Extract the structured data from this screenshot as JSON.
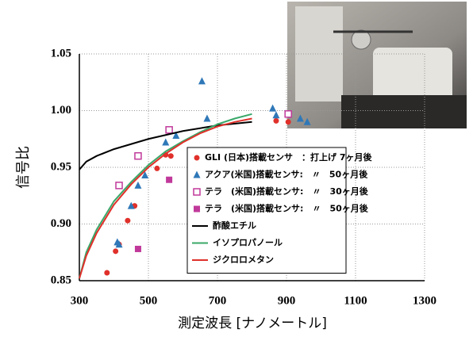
{
  "chart_data": {
    "type": "scatter",
    "xlabel": "測定波長 [ナノメートル]",
    "ylabel": "信号比",
    "xlim": [
      300,
      1300
    ],
    "xticks": [
      300,
      500,
      700,
      900,
      1100,
      1300
    ],
    "ylim": [
      0.85,
      1.05
    ],
    "yticks": [
      0.85,
      {
        "value": 0.9,
        "label": "0.90"
      },
      0.95,
      {
        "value": 1,
        "label": "1.00"
      },
      1.05
    ],
    "grid": true,
    "legend": "center right",
    "series": [
      {
        "name": "GLI (日本)搭載センサ　：打上げ 7ヶ月後",
        "type": "scatter",
        "marker": "circle",
        "color": "#e0302a",
        "x": [
          380,
          405,
          415,
          440,
          460,
          525,
          550,
          565,
          870,
          905
        ],
        "values": [
          0.857,
          0.876,
          0.882,
          0.903,
          0.916,
          0.949,
          0.961,
          0.96,
          0.991,
          0.99
        ]
      },
      {
        "name": "アクア(米国)搭載センサ:　〃　50ヶ月後",
        "type": "scatter",
        "marker": "triangle",
        "color": "#2f78b8",
        "x": [
          410,
          415,
          450,
          470,
          490,
          550,
          580,
          655,
          670,
          860,
          870,
          940,
          960
        ],
        "values": [
          0.884,
          0.882,
          0.916,
          0.934,
          0.943,
          0.972,
          0.978,
          1.026,
          0.993,
          1.002,
          0.996,
          0.993,
          0.99
        ]
      },
      {
        "name": "テラ　(米国)搭載センサ:　〃　30ヶ月後",
        "type": "scatter",
        "marker": "square-open",
        "color": "#c0399a",
        "x": [
          415,
          470,
          560,
          905
        ],
        "values": [
          0.934,
          0.96,
          0.983,
          0.997
        ]
      },
      {
        "name": "テラ　(米国)搭載センサ:　〃　50ヶ月後",
        "type": "scatter",
        "marker": "square",
        "color": "#c0399a",
        "x": [
          470,
          560
        ],
        "values": [
          0.878,
          0.939
        ]
      },
      {
        "name": "酢酸エチル",
        "type": "line",
        "color": "#000000",
        "x": [
          300,
          320,
          350,
          400,
          500,
          600,
          700,
          800
        ],
        "values": [
          0.948,
          0.955,
          0.96,
          0.966,
          0.975,
          0.982,
          0.987,
          0.99
        ]
      },
      {
        "name": "イソプロパノール",
        "type": "line",
        "color": "#3aa86a",
        "x": [
          300,
          320,
          350,
          400,
          450,
          500,
          550,
          600,
          650,
          700,
          750,
          800
        ],
        "values": [
          0.852,
          0.875,
          0.895,
          0.92,
          0.937,
          0.952,
          0.964,
          0.973,
          0.981,
          0.988,
          0.993,
          0.997
        ]
      },
      {
        "name": "ジクロロメタン",
        "type": "line",
        "color": "#e0302a",
        "x": [
          300,
          320,
          350,
          400,
          450,
          500,
          550,
          600,
          650,
          700,
          750,
          800
        ],
        "values": [
          0.852,
          0.872,
          0.892,
          0.917,
          0.935,
          0.95,
          0.962,
          0.972,
          0.98,
          0.986,
          0.99,
          0.993
        ]
      }
    ]
  }
}
